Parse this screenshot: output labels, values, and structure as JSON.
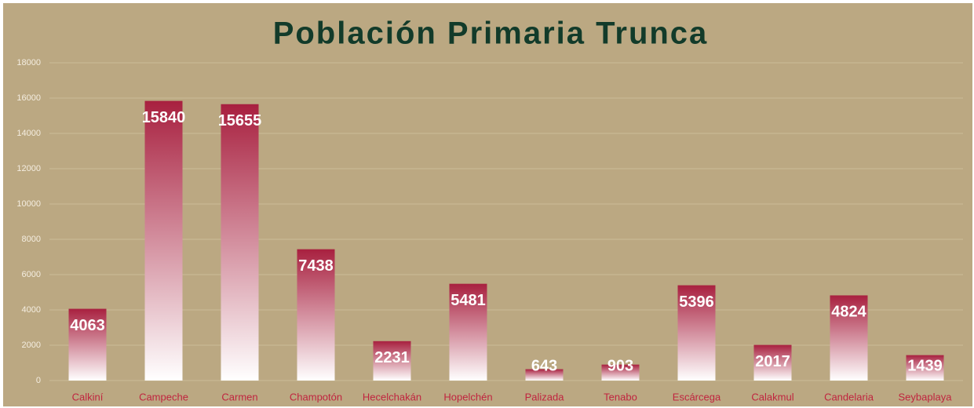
{
  "chart_data": {
    "type": "bar",
    "title": "Población Primaria Trunca",
    "categories": [
      "Calkiní",
      "Campeche",
      "Carmen",
      "Champotón",
      "Hecelchakán",
      "Hopelchén",
      "Palizada",
      "Tenabo",
      "Escárcega",
      "Calakmul",
      "Candelaria",
      "Seybaplaya"
    ],
    "values": [
      4063,
      15840,
      15655,
      7438,
      2231,
      5481,
      643,
      903,
      5396,
      2017,
      4824,
      1439
    ],
    "color": "#a8203f",
    "ylim": [
      0,
      18000
    ],
    "yticks": [
      0,
      2000,
      4000,
      6000,
      8000,
      10000,
      12000,
      14000,
      16000,
      18000
    ],
    "grid": true
  }
}
